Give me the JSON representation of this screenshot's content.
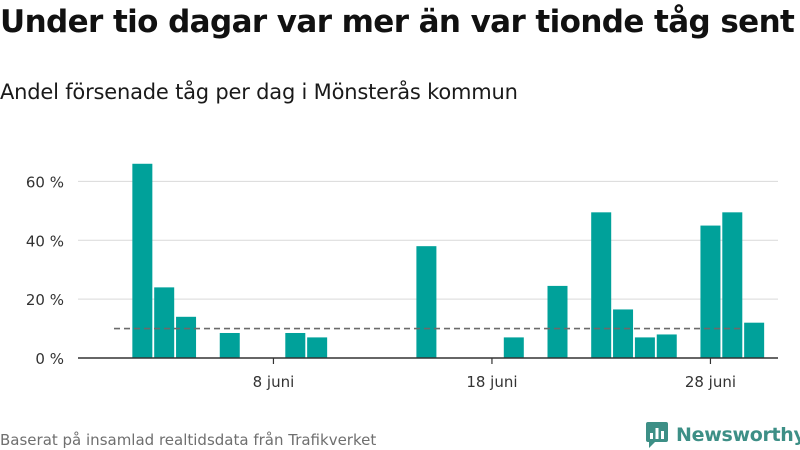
{
  "title": "Under tio dagar var mer än var tionde tåg sent",
  "subtitle": "Andel försenade tåg per dag i Mönsterås kommun",
  "footer": "Baserat på insamlad realtidsdata från Trafikverket",
  "brand": "Newsworthy",
  "colors": {
    "bar": "#00a19a",
    "reference_line": "#6b6b6b",
    "grid": "#d9d9d9",
    "axis": "#333333",
    "brand": "#3d8f86"
  },
  "chart_data": {
    "type": "bar",
    "x": [
      "1 juni",
      "2 juni",
      "3 juni",
      "4 juni",
      "5 juni",
      "6 juni",
      "7 juni",
      "8 juni",
      "9 juni",
      "10 juni",
      "11 juni",
      "12 juni",
      "13 juni",
      "14 juni",
      "15 juni",
      "16 juni",
      "17 juni",
      "18 juni",
      "19 juni",
      "20 juni",
      "21 juni",
      "22 juni",
      "23 juni",
      "24 juni",
      "25 juni",
      "26 juni",
      "27 juni",
      "28 juni",
      "29 juni",
      "30 juni"
    ],
    "values": [
      null,
      66,
      24,
      14,
      null,
      8.5,
      null,
      null,
      8.5,
      7,
      null,
      null,
      null,
      null,
      38,
      null,
      null,
      null,
      7,
      null,
      24.5,
      null,
      49.5,
      16.5,
      7,
      8,
      null,
      45,
      49.5,
      12
    ],
    "reference_line": 10,
    "xticks": [
      "8 juni",
      "18 juni",
      "28 juni"
    ],
    "yticks": [
      "0 %",
      "20 %",
      "40 %",
      "60 %"
    ],
    "ylim": [
      0,
      70
    ],
    "grid": true
  }
}
